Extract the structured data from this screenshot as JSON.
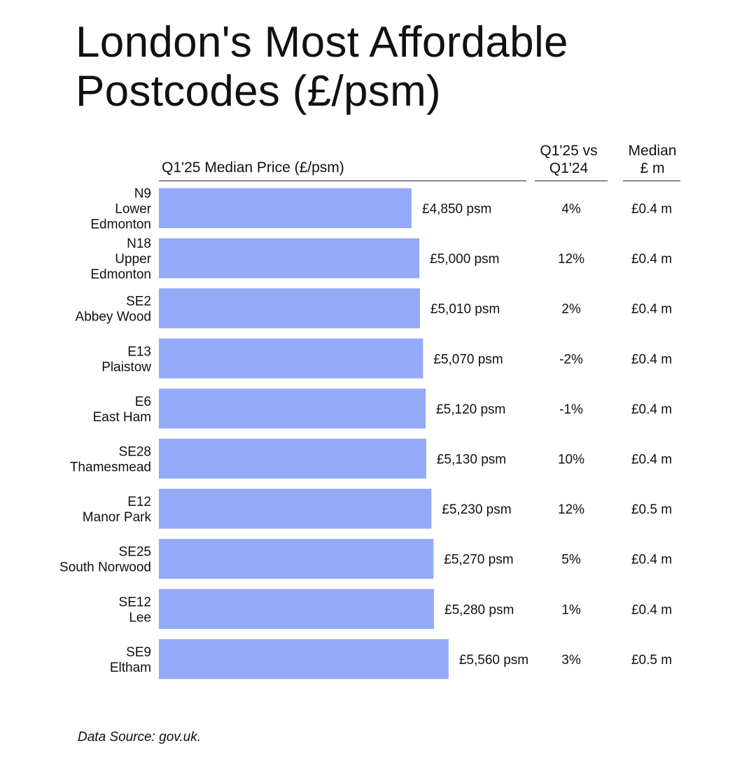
{
  "title": "London's Most Affordable Postcodes (£/psm)",
  "headers": {
    "price": "Q1'25 Median Price (£/psm)",
    "change_line1": "Q1'25 vs",
    "change_line2": "Q1'24",
    "median_line1": "Median",
    "median_line2": "£ m"
  },
  "source": "Data Source: gov.uk.",
  "colors": {
    "bar": "#94a9f7",
    "text": "#111111"
  },
  "chart_data": {
    "type": "bar",
    "orientation": "horizontal",
    "title": "London's Most Affordable Postcodes (£/psm)",
    "xlabel": "Q1'25 Median Price (£/psm)",
    "ylabel": "",
    "xlim": [
      0,
      6000
    ],
    "grid": false,
    "legend": "none",
    "categories": [
      [
        "N9",
        "Lower",
        "Edmonton"
      ],
      [
        "N18",
        "Upper",
        "Edmonton"
      ],
      [
        "SE2",
        "Abbey Wood"
      ],
      [
        "E13",
        "Plaistow"
      ],
      [
        "E6",
        "East Ham"
      ],
      [
        "SE28",
        "Thamesmead"
      ],
      [
        "E12",
        "Manor Park"
      ],
      [
        "SE25",
        "South Norwood"
      ],
      [
        "SE12",
        "Lee"
      ],
      [
        "SE9",
        "Eltham"
      ]
    ],
    "values": [
      4850,
      5000,
      5010,
      5070,
      5120,
      5130,
      5230,
      5270,
      5280,
      5560
    ],
    "value_labels": [
      "£4,850 psm",
      "£5,000 psm",
      "£5,010 psm",
      "£5,070 psm",
      "£5,120 psm",
      "£5,130 psm",
      "£5,230 psm",
      "£5,270 psm",
      "£5,280 psm",
      "£5,560 psm"
    ],
    "change_yoy": [
      "4%",
      "12%",
      "2%",
      "-2%",
      "-1%",
      "10%",
      "12%",
      "5%",
      "1%",
      "3%"
    ],
    "median_price_m": [
      "£0.4 m",
      "£0.4 m",
      "£0.4 m",
      "£0.4 m",
      "£0.4 m",
      "£0.4 m",
      "£0.5 m",
      "£0.4 m",
      "£0.4 m",
      "£0.5 m"
    ]
  }
}
